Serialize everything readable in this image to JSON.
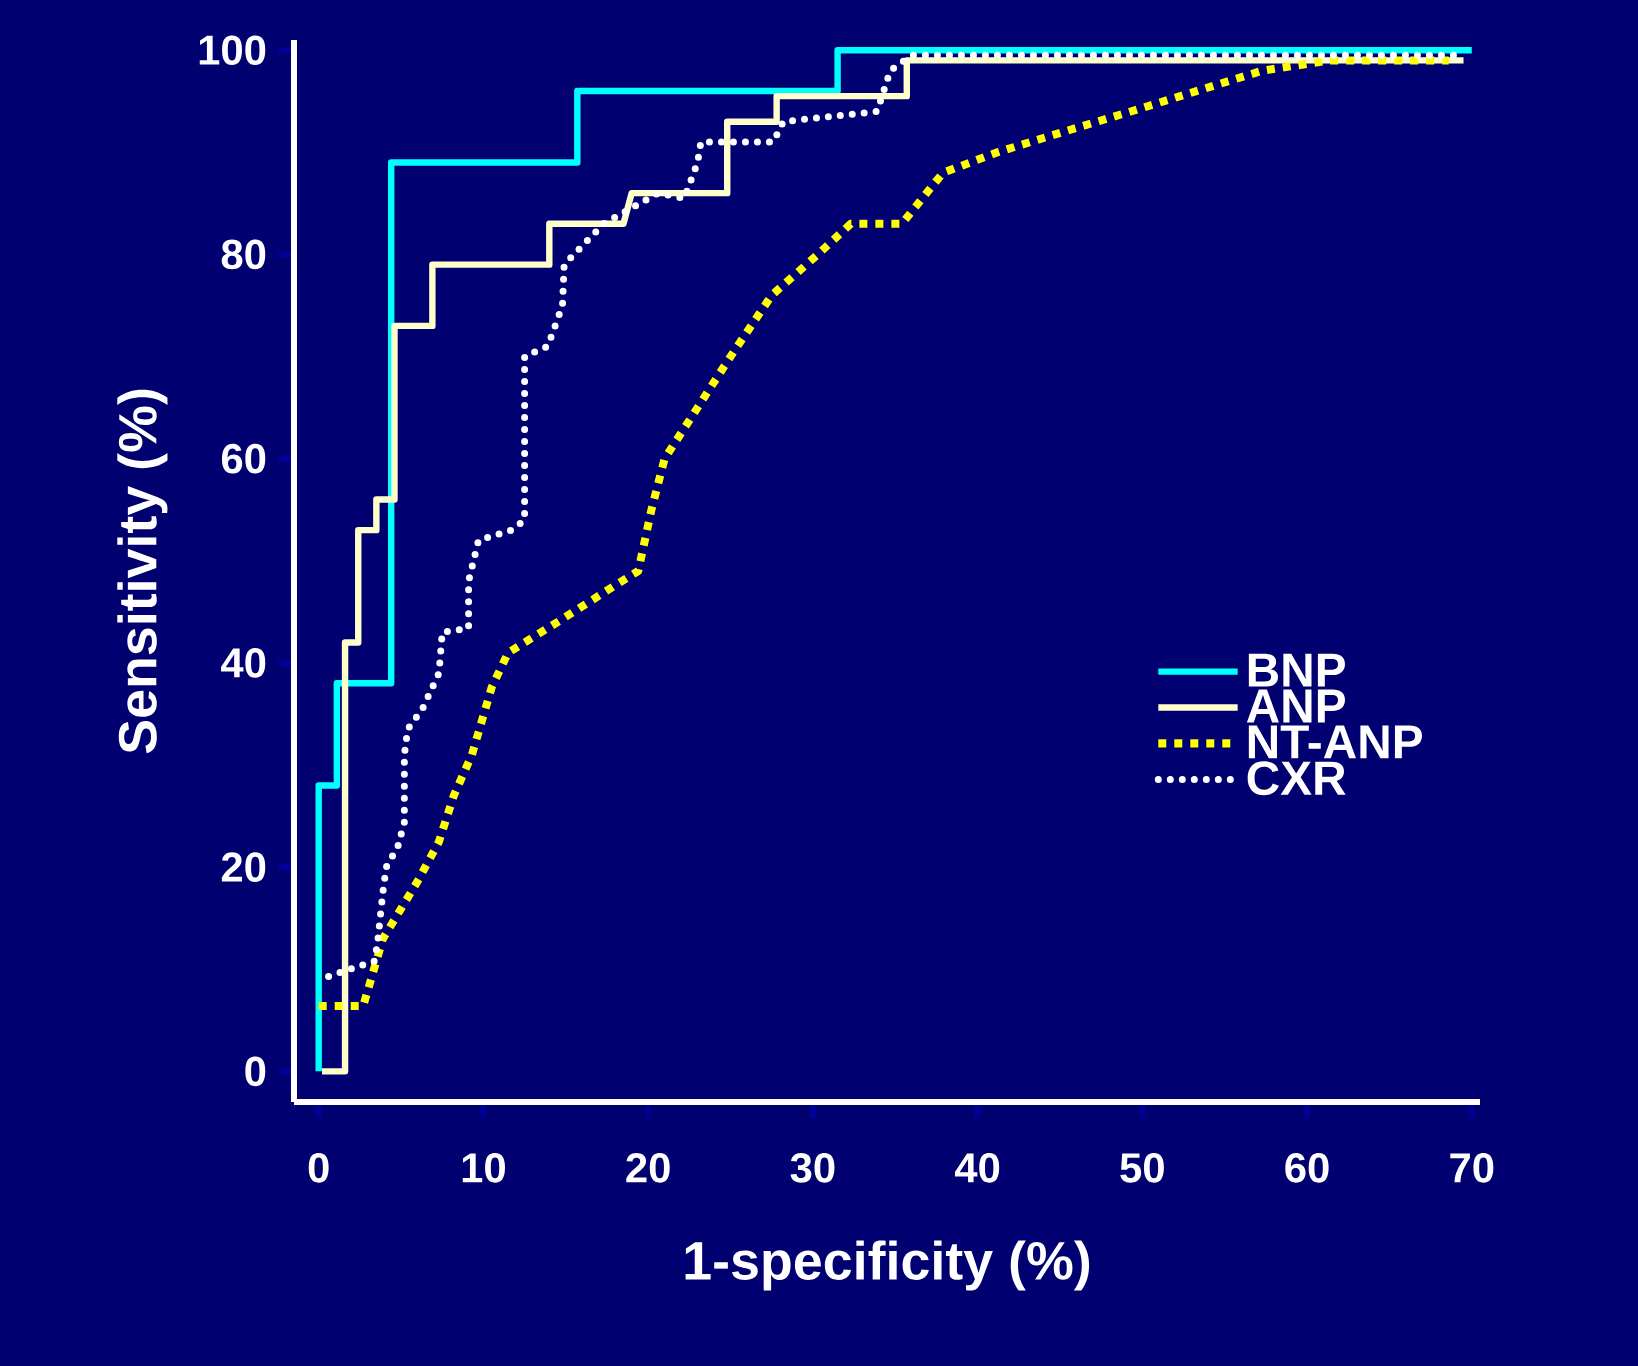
{
  "chart_data": {
    "type": "line",
    "xlabel": "1-specificity (%)",
    "ylabel": "Sensitivity (%)",
    "xlim": [
      -1.5,
      70.5
    ],
    "ylim": [
      -3,
      101
    ],
    "xticks": [
      0,
      10,
      20,
      30,
      40,
      50,
      60,
      70
    ],
    "yticks": [
      0,
      20,
      40,
      60,
      80,
      100
    ],
    "grid": false,
    "legend": "right",
    "series": [
      {
        "name": "BNP",
        "color": "#00ffff",
        "line_style": "solid",
        "x": [
          0,
          0,
          1.1,
          1.1,
          4.4,
          4.4,
          15.7,
          15.7,
          31.5,
          31.5,
          70
        ],
        "values": [
          0,
          28,
          28,
          38,
          38,
          89,
          89,
          96,
          96,
          100,
          100
        ]
      },
      {
        "name": "ANP",
        "color": "#ffffcc",
        "line_style": "solid",
        "x": [
          0.2,
          1.6,
          1.6,
          2.4,
          2.4,
          3.5,
          3.5,
          4.6,
          4.6,
          6.9,
          6.9,
          14,
          14,
          18.5,
          19,
          24.8,
          24.8,
          27.8,
          27.8,
          35.7,
          35.7,
          69.5
        ],
        "values": [
          0,
          0,
          42,
          42,
          53,
          53,
          56,
          56,
          73,
          73,
          79,
          79,
          83,
          83,
          86,
          86,
          93,
          93,
          95.5,
          95.5,
          99,
          99
        ]
      },
      {
        "name": "NT-ANP",
        "color": "#ffff00",
        "line_style": "dashed",
        "x": [
          0,
          2.7,
          3.9,
          6,
          7.3,
          8.2,
          9.3,
          10.5,
          11.5,
          14.5,
          18,
          19.4,
          20.2,
          21,
          22.6,
          25,
          27.5,
          30.3,
          32.3,
          35.4,
          37.9,
          41.2,
          45.2,
          49.3,
          53.3,
          57.3,
          61.4,
          68.6
        ],
        "values": [
          6.4,
          6.4,
          13,
          18.6,
          22.5,
          27,
          31,
          37.6,
          41,
          44,
          47.6,
          49,
          55,
          60,
          64,
          70,
          76,
          80,
          83,
          83,
          88,
          90,
          92,
          94,
          96,
          98,
          99,
          99
        ]
      },
      {
        "name": "CXR",
        "color": "#ffffff",
        "line_style": "dotted",
        "x": [
          0.6,
          3.4,
          3.6,
          3.9,
          4.1,
          4.8,
          5.2,
          5.2,
          5.4,
          6.3,
          7.3,
          7.5,
          9.1,
          9.1,
          9.7,
          11.7,
          12.5,
          12.5,
          13.9,
          14.8,
          14.9,
          16.1,
          17.3,
          20.6,
          22.2,
          23,
          23.2,
          27.6,
          28.2,
          33.9,
          34.7,
          36,
          69
        ],
        "values": [
          9.3,
          10.8,
          13,
          17.6,
          20,
          22,
          24.4,
          31,
          33.5,
          35.5,
          39,
          43,
          43.4,
          48,
          52,
          53,
          54,
          70,
          71,
          75,
          79,
          81,
          83,
          86,
          85.5,
          89,
          91,
          91,
          93,
          94,
          98,
          99.5,
          99.5
        ]
      }
    ]
  }
}
